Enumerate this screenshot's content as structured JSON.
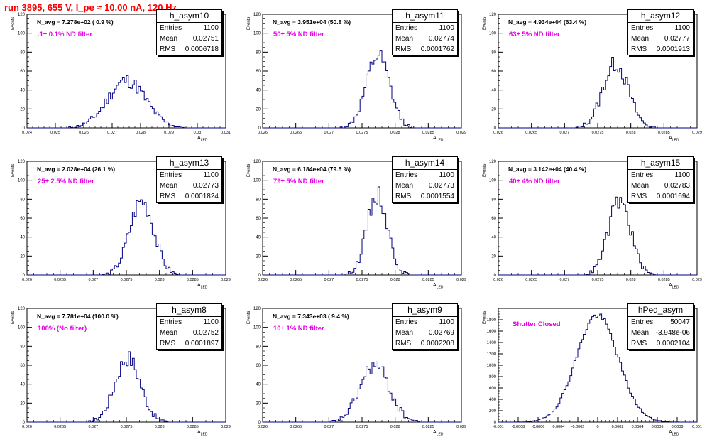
{
  "title": "run 3895,   655 V, I_pe ≈ 10.00 nA, 120 Hz",
  "y_axis_label": "Events",
  "x_axis_label": "A",
  "x_axis_label_sub": "LED",
  "stats_labels": {
    "entries": "Entries",
    "mean": "Mean",
    "rms": "RMS"
  },
  "line_color": "#000080",
  "annotation_color": "#e600e6",
  "title_color": "#ff0000",
  "chart_data": [
    {
      "type": "histogram",
      "name": "h_asym10",
      "stats": {
        "entries": "1100",
        "mean": "0.02751",
        "rms": "0.0006718"
      },
      "n_avg": "N_avg = 7.278e+02 ( 0.9 %)",
      "filter": ".1± 0.1% ND filter",
      "xlim": [
        0.024,
        0.031
      ],
      "ylim": [
        0,
        120
      ],
      "xticks": [
        "0.024",
        "0.025",
        "0.026",
        "0.027",
        "0.028",
        "0.029",
        "0.03",
        "0.031"
      ],
      "yticks": [
        "0",
        "20",
        "40",
        "60",
        "80",
        "100",
        "120"
      ],
      "mean": 0.02751,
      "sigma": 0.00067,
      "peak": 50,
      "bins": 100,
      "seed": 11
    },
    {
      "type": "histogram",
      "name": "h_asym11",
      "stats": {
        "entries": "1100",
        "mean": "0.02774",
        "rms": "0.0001762"
      },
      "n_avg": "N_avg = 3.951e+04 (50.8 %)",
      "filter": "50± 5% ND filter",
      "xlim": [
        0.026,
        0.029
      ],
      "ylim": [
        0,
        120
      ],
      "xticks": [
        "0.026",
        "0.0265",
        "0.027",
        "0.0275",
        "0.028",
        "0.0285",
        "0.029"
      ],
      "yticks": [
        "0",
        "20",
        "40",
        "60",
        "80",
        "100",
        "120"
      ],
      "mean": 0.02774,
      "sigma": 0.000176,
      "peak": 75,
      "bins": 100,
      "seed": 12
    },
    {
      "type": "histogram",
      "name": "h_asym12",
      "stats": {
        "entries": "1100",
        "mean": "0.02777",
        "rms": "0.0001913"
      },
      "n_avg": "N_avg = 4.934e+04 (63.4 %)",
      "filter": "63± 5% ND filter",
      "xlim": [
        0.026,
        0.029
      ],
      "ylim": [
        0,
        120
      ],
      "xticks": [
        "0.026",
        "0.0265",
        "0.027",
        "0.0275",
        "0.028",
        "0.0285",
        "0.029"
      ],
      "yticks": [
        "0",
        "20",
        "40",
        "60",
        "80",
        "100",
        "120"
      ],
      "mean": 0.02777,
      "sigma": 0.000191,
      "peak": 68,
      "bins": 100,
      "seed": 13
    },
    {
      "type": "histogram",
      "name": "h_asym13",
      "stats": {
        "entries": "1100",
        "mean": "0.02773",
        "rms": "0.0001824"
      },
      "n_avg": "N_avg = 2.028e+04 (26.1 %)",
      "filter": "25± 2.5% ND filter",
      "xlim": [
        0.026,
        0.029
      ],
      "ylim": [
        0,
        120
      ],
      "xticks": [
        "0.026",
        "0.0265",
        "0.027",
        "0.0275",
        "0.028",
        "0.0285",
        "0.029"
      ],
      "yticks": [
        "0",
        "20",
        "40",
        "60",
        "80",
        "100",
        "120"
      ],
      "mean": 0.02773,
      "sigma": 0.000182,
      "peak": 78,
      "bins": 100,
      "seed": 14
    },
    {
      "type": "histogram",
      "name": "h_asym14",
      "stats": {
        "entries": "1100",
        "mean": "0.02773",
        "rms": "0.0001554"
      },
      "n_avg": "N_avg = 6.184e+04 (79.5 %)",
      "filter": "79± 5% ND filter",
      "xlim": [
        0.026,
        0.029
      ],
      "ylim": [
        0,
        120
      ],
      "xticks": [
        "0.026",
        "0.0265",
        "0.027",
        "0.0275",
        "0.028",
        "0.0285",
        "0.029"
      ],
      "yticks": [
        "0",
        "20",
        "40",
        "60",
        "80",
        "100",
        "120"
      ],
      "mean": 0.02773,
      "sigma": 0.000155,
      "peak": 85,
      "bins": 100,
      "seed": 15
    },
    {
      "type": "histogram",
      "name": "h_asym15",
      "stats": {
        "entries": "1100",
        "mean": "0.02783",
        "rms": "0.0001694"
      },
      "n_avg": "N_avg = 3.142e+04 (40.4 %)",
      "filter": "40± 4% ND filter",
      "xlim": [
        0.026,
        0.029
      ],
      "ylim": [
        0,
        120
      ],
      "xticks": [
        "0.026",
        "0.0265",
        "0.027",
        "0.0275",
        "0.028",
        "0.0285",
        "0.029"
      ],
      "yticks": [
        "0",
        "20",
        "40",
        "60",
        "80",
        "100",
        "120"
      ],
      "mean": 0.02783,
      "sigma": 0.000169,
      "peak": 78,
      "bins": 100,
      "seed": 16
    },
    {
      "type": "histogram",
      "name": "h_asym8",
      "stats": {
        "entries": "1100",
        "mean": "0.02752",
        "rms": "0.0001897"
      },
      "n_avg": "N_avg = 7.781e+04 (100.0 %)",
      "filter": "100% (No filter)",
      "xlim": [
        0.026,
        0.029
      ],
      "ylim": [
        0,
        120
      ],
      "xticks": [
        "0.026",
        "0.0265",
        "0.027",
        "0.0275",
        "0.028",
        "0.0285",
        "0.029"
      ],
      "yticks": [
        "0",
        "20",
        "40",
        "60",
        "80",
        "100",
        "120"
      ],
      "mean": 0.02752,
      "sigma": 0.00019,
      "peak": 68,
      "bins": 100,
      "seed": 17
    },
    {
      "type": "histogram",
      "name": "h_asym9",
      "stats": {
        "entries": "1100",
        "mean": "0.02769",
        "rms": "0.0002208"
      },
      "n_avg": "N_avg = 7.343e+03 ( 9.4 %)",
      "filter": "10± 1% ND filter",
      "xlim": [
        0.026,
        0.029
      ],
      "ylim": [
        0,
        120
      ],
      "xticks": [
        "0.026",
        "0.0265",
        "0.027",
        "0.0275",
        "0.028",
        "0.0285",
        "0.029"
      ],
      "yticks": [
        "0",
        "20",
        "40",
        "60",
        "80",
        "100",
        "120"
      ],
      "mean": 0.02769,
      "sigma": 0.00022,
      "peak": 60,
      "bins": 100,
      "seed": 18
    },
    {
      "type": "histogram",
      "name": "hPed_asym",
      "stats": {
        "entries": "50047",
        "mean": "-3.948e-06",
        "rms": "0.0002104"
      },
      "n_avg": "",
      "filter": "Shutter Closed",
      "xlim": [
        -0.001,
        0.001
      ],
      "ylim": [
        0,
        2000
      ],
      "xticks": [
        "-0.001",
        "-0.0008",
        "-0.0006",
        "-0.0004",
        "-0.0002",
        "0",
        "0.0002",
        "0.0004",
        "0.0006",
        "0.0008",
        "0.001"
      ],
      "yticks": [
        "0",
        "200",
        "400",
        "600",
        "800",
        "1000",
        "1200",
        "1400",
        "1600",
        "1800"
      ],
      "mean": -4e-06,
      "sigma": 0.00021,
      "peak": 1880,
      "bins": 100,
      "seed": 19
    }
  ]
}
